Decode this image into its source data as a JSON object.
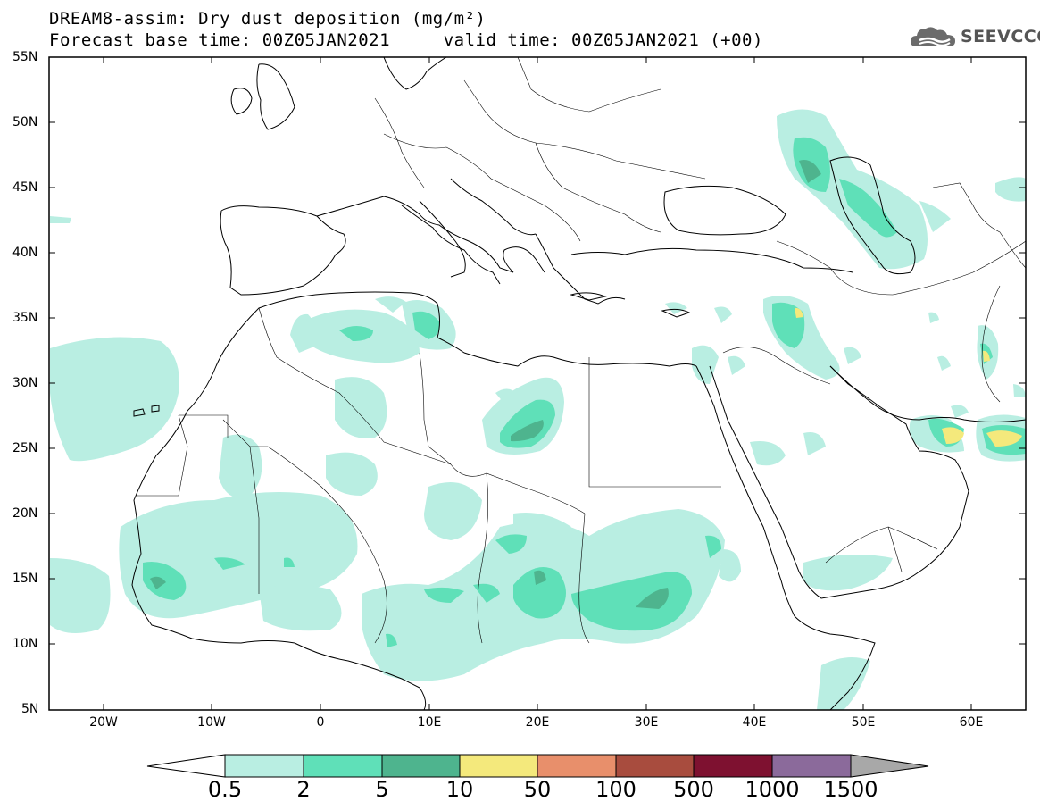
{
  "title": {
    "line1": "DREAM8-assim: Dry dust deposition (mg/m²)",
    "line2": "Forecast base time: 00Z05JAN2021     valid time: 00Z05JAN2021 (+00)"
  },
  "logo": {
    "text": "SEEVCCC",
    "icon": "cloud-logo-icon"
  },
  "map": {
    "lat_labels": [
      "55N",
      "50N",
      "45N",
      "40N",
      "35N",
      "30N",
      "25N",
      "20N",
      "15N",
      "10N",
      "5N"
    ],
    "lon_labels": [
      "20W",
      "10W",
      "0",
      "10E",
      "20E",
      "30E",
      "40E",
      "50E",
      "60E"
    ]
  },
  "colorbar": {
    "labels": [
      "0.5",
      "2",
      "5",
      "10",
      "50",
      "100",
      "500",
      "1000",
      "1500"
    ],
    "colors": [
      "#ffffff",
      "#b9eee2",
      "#5fe0b8",
      "#4eb48e",
      "#f4e97c",
      "#e88f6b",
      "#a84c3e",
      "#7e1130",
      "#8b6a9b",
      "#a8a8a8"
    ]
  }
}
